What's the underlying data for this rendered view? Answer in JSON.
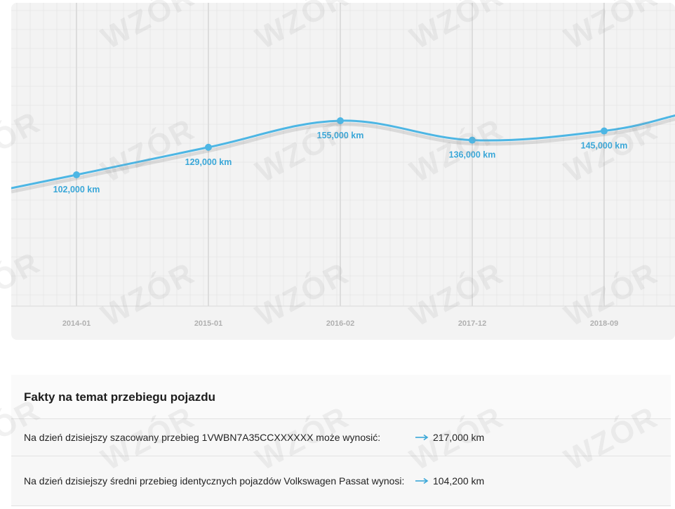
{
  "watermark_text": "WZÓR",
  "chart_data": {
    "type": "line",
    "categories": [
      "2014-01",
      "2015-01",
      "2016-02",
      "2017-12",
      "2018-09"
    ],
    "values": [
      102000,
      129000,
      155000,
      136000,
      145000
    ],
    "point_labels": [
      "102,000 km",
      "129,000 km",
      "155,000 km",
      "136,000 km",
      "145,000 km"
    ],
    "unit": "km",
    "grid": true,
    "line_color": "#4db6e4",
    "label_color": "#3aa7d8"
  },
  "facts": {
    "title": "Fakty na temat przebiegu pojazdu",
    "rows": [
      {
        "label": "Na dzień dzisiejszy szacowany przebieg 1VWBN7A35CCXXXXXX może wynosić:",
        "value": "217,000 km"
      },
      {
        "label": "Na dzień dzisiejszy średni przebieg identycznych pojazdów Volkswagen Passat wynosi:",
        "value": "104,200 km"
      }
    ],
    "arrow_color": "#3aa7d8"
  }
}
